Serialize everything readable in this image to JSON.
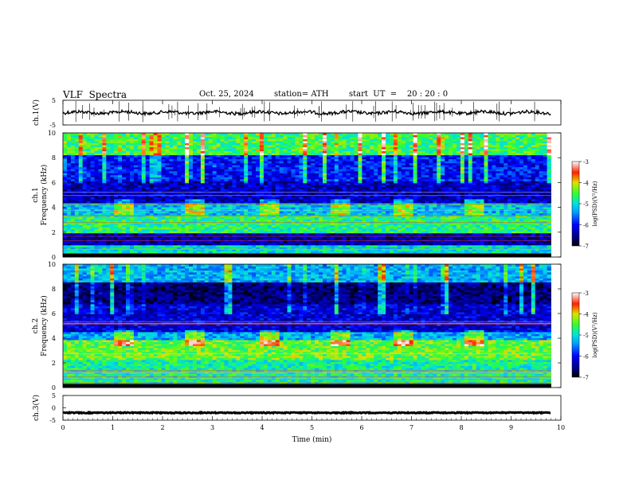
{
  "header": {
    "title": "VLF  Spectra",
    "date": "Oct. 25, 2024",
    "station": "station= ATH",
    "start": "start  UT  =    20 : 20 : 0"
  },
  "chart_data": [
    {
      "type": "line",
      "panel": "ch1-waveform",
      "ylabel": "ch.1(V)",
      "ylim": [
        -5,
        5
      ],
      "yticks": [
        "5",
        "-5"
      ],
      "xlim": [
        0,
        10
      ],
      "baseline": 0,
      "color": "#000000"
    },
    {
      "type": "heatmap",
      "panel": "ch1-spectrogram",
      "ylabel": "ch.1\nFrequency  (kHz)",
      "ylim": [
        0,
        10
      ],
      "yticks": [
        "0",
        "2",
        "4",
        "6",
        "8",
        "10"
      ],
      "xlim": [
        0,
        10
      ],
      "data_end_min": 9.8,
      "colorbar": {
        "label": "log(PSD)(V²/Hz)",
        "range": [
          -7,
          -3
        ],
        "ticks": [
          "-3",
          "-4",
          "-5",
          "-6",
          "-7"
        ]
      },
      "bands": [
        {
          "from": 0.0,
          "to": 0.3,
          "level": -6.8
        },
        {
          "from": 0.3,
          "to": 1.0,
          "level": -5.0
        },
        {
          "from": 1.0,
          "to": 2.0,
          "level": -6.4
        },
        {
          "from": 2.0,
          "to": 3.4,
          "level": -4.7
        },
        {
          "from": 3.4,
          "to": 4.3,
          "level": -5.2
        },
        {
          "from": 4.3,
          "to": 6.2,
          "level": -6.3
        },
        {
          "from": 6.2,
          "to": 8.2,
          "level": -6.0
        },
        {
          "from": 8.2,
          "to": 10.0,
          "level": -4.6
        }
      ],
      "bright_segments": [
        [
          1.0,
          1.4
        ],
        [
          2.4,
          2.8
        ],
        [
          3.9,
          4.3
        ],
        [
          5.3,
          5.7
        ],
        [
          6.6,
          7.0
        ],
        [
          8.0,
          8.4
        ]
      ]
    },
    {
      "type": "heatmap",
      "panel": "ch2-spectrogram",
      "ylabel": "ch.2\nFrequency  (kHz)",
      "ylim": [
        0,
        10
      ],
      "yticks": [
        "0",
        "2",
        "4",
        "6",
        "8",
        "10"
      ],
      "xlim": [
        0,
        10
      ],
      "data_end_min": 9.8,
      "colorbar": {
        "label": "log(PSD)(V²/Hz)",
        "range": [
          -7,
          -3
        ],
        "ticks": [
          "-3",
          "-4",
          "-5",
          "-6",
          "-7"
        ]
      },
      "bands": [
        {
          "from": 0.0,
          "to": 0.3,
          "level": -6.8
        },
        {
          "from": 0.3,
          "to": 2.2,
          "level": -4.8
        },
        {
          "from": 2.2,
          "to": 3.8,
          "level": -4.4
        },
        {
          "from": 3.8,
          "to": 4.5,
          "level": -5.3
        },
        {
          "from": 4.5,
          "to": 6.8,
          "level": -6.2
        },
        {
          "from": 6.8,
          "to": 8.5,
          "level": -6.6
        },
        {
          "from": 8.5,
          "to": 10.0,
          "level": -5.3
        }
      ],
      "bright_segments": [
        [
          1.0,
          1.4
        ],
        [
          2.4,
          2.8
        ],
        [
          3.9,
          4.3
        ],
        [
          5.3,
          5.7
        ],
        [
          6.6,
          7.0
        ],
        [
          8.0,
          8.4
        ]
      ]
    },
    {
      "type": "line",
      "panel": "ch3-waveform",
      "ylabel": "ch.3(V)",
      "ylim": [
        -5,
        5
      ],
      "yticks": [
        "5",
        "0",
        "-5"
      ],
      "xlim": [
        0,
        10
      ],
      "xlabel": "Time  (min)",
      "xticks": [
        "0",
        "1",
        "2",
        "3",
        "4",
        "5",
        "6",
        "7",
        "8",
        "9",
        "10"
      ],
      "baseline": -2,
      "color": "#000000"
    }
  ]
}
